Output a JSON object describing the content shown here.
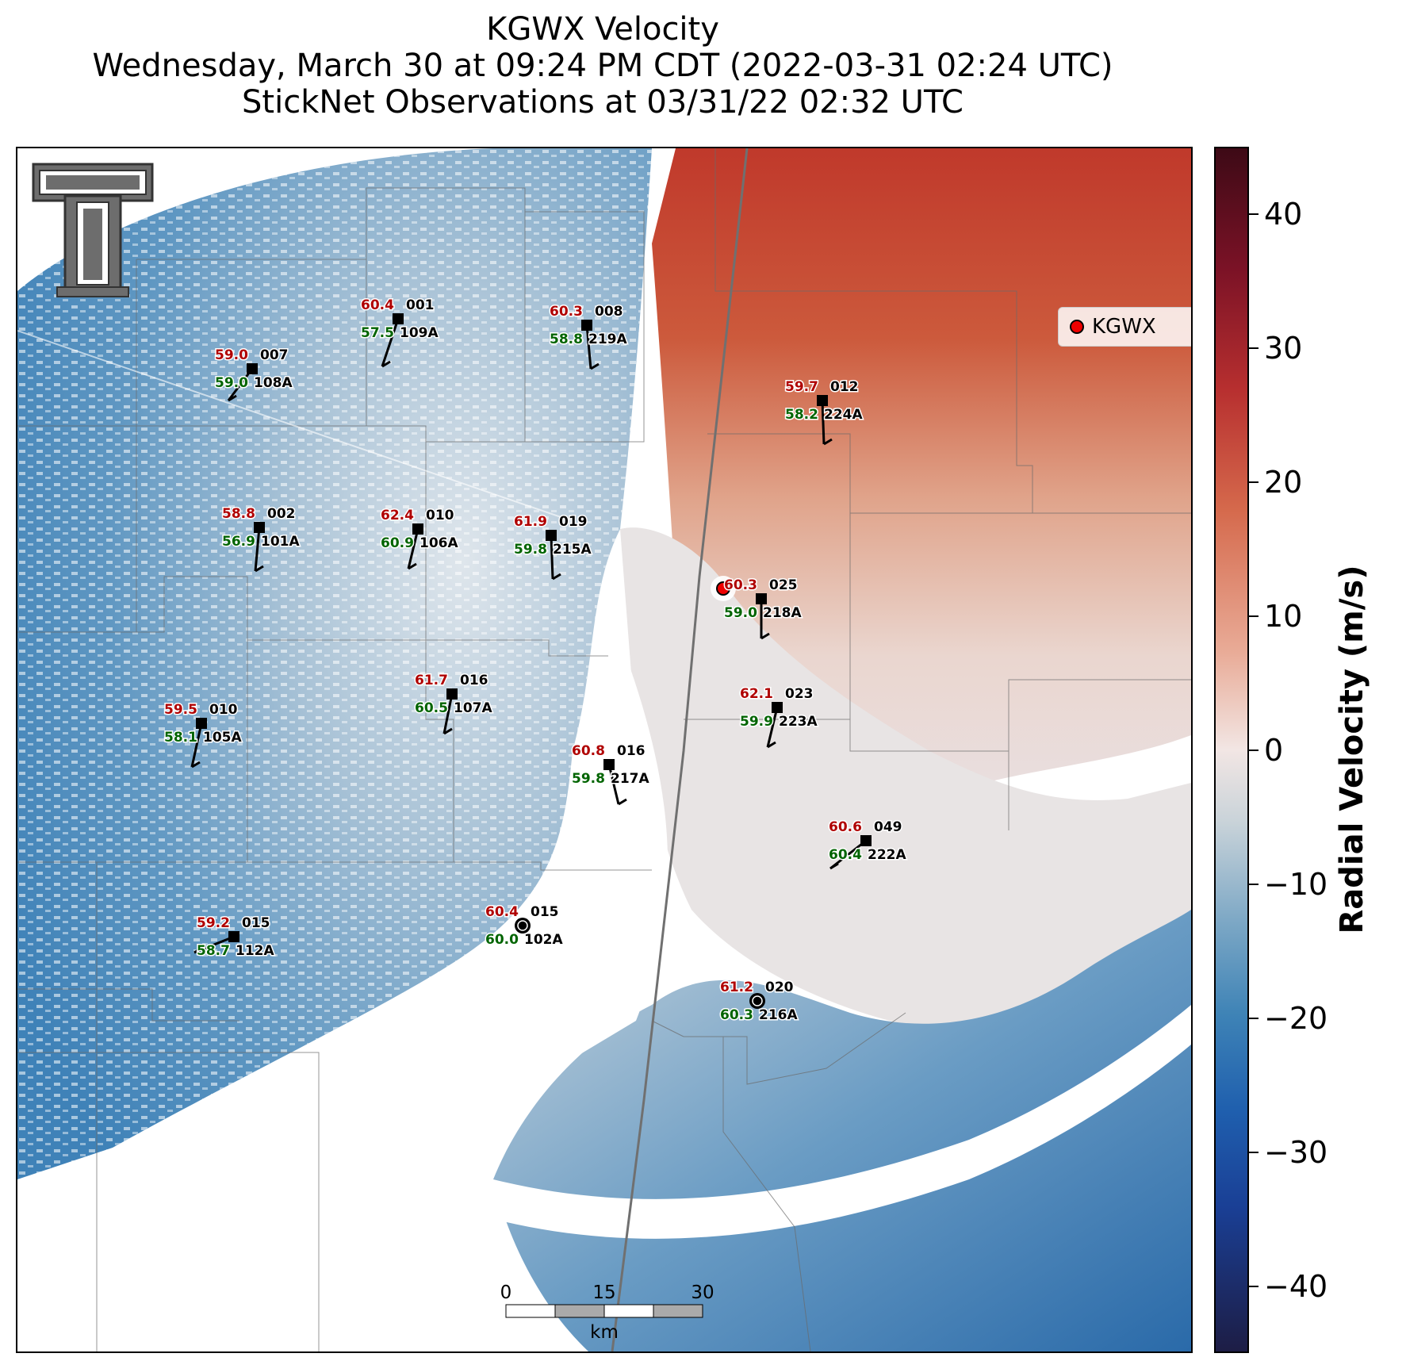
{
  "title": {
    "line1": "KGWX Velocity",
    "line2": "Wednesday, March 30 at 09:24 PM CDT (2022-03-31 02:24 UTC)",
    "line3": "StickNet Observations at 03/31/22 02:32 UTC"
  },
  "legend": {
    "label": "KGWX",
    "marker_color": "#ee0000"
  },
  "colorbar": {
    "title": "Radial Velocity (m/s)",
    "range": [
      -45,
      45
    ],
    "ticks": [
      "40",
      "30",
      "20",
      "10",
      "0",
      "−10",
      "−20",
      "−30",
      "−40"
    ]
  },
  "scale_bar": {
    "labels": [
      "0",
      "15",
      "30"
    ],
    "unit": "km"
  },
  "logo": {
    "icon": "texas-tech-double-t-logo"
  },
  "stations": [
    {
      "id": "001",
      "name": "109A",
      "temp": "60.4",
      "dew": "57.5",
      "type": "stick"
    },
    {
      "id": "008",
      "name": "219A",
      "temp": "60.3",
      "dew": "58.8",
      "type": "stick"
    },
    {
      "id": "007",
      "name": "108A",
      "temp": "59.0",
      "dew": "59.0",
      "type": "stick"
    },
    {
      "id": "012",
      "name": "224A",
      "temp": "59.7",
      "dew": "58.2",
      "type": "stick"
    },
    {
      "id": "002",
      "name": "101A",
      "temp": "58.8",
      "dew": "56.9",
      "type": "stick"
    },
    {
      "id": "010",
      "name": "106A",
      "temp": "62.4",
      "dew": "60.9",
      "type": "stick"
    },
    {
      "id": "019",
      "name": "215A",
      "temp": "61.9",
      "dew": "59.8",
      "type": "stick"
    },
    {
      "id": "025",
      "name": "218A",
      "temp": "60.3",
      "dew": "59.0",
      "type": "stick"
    },
    {
      "id": "016",
      "name": "107A",
      "temp": "61.7",
      "dew": "60.5",
      "type": "stick"
    },
    {
      "id": "023",
      "name": "223A",
      "temp": "62.1",
      "dew": "59.9",
      "type": "stick"
    },
    {
      "id": "010",
      "name": "105A",
      "temp": "59.5",
      "dew": "58.1",
      "type": "stick"
    },
    {
      "id": "016",
      "name": "217A",
      "temp": "60.8",
      "dew": "59.8",
      "type": "stick"
    },
    {
      "id": "049",
      "name": "222A",
      "temp": "60.6",
      "dew": "60.4",
      "type": "stick"
    },
    {
      "id": "015",
      "name": "102A",
      "temp": "60.4",
      "dew": "60.0",
      "type": "calm"
    },
    {
      "id": "015",
      "name": "112A",
      "temp": "59.2",
      "dew": "58.7",
      "type": "stick"
    },
    {
      "id": "020",
      "name": "216A",
      "temp": "61.2",
      "dew": "60.3",
      "type": "calm"
    }
  ]
}
